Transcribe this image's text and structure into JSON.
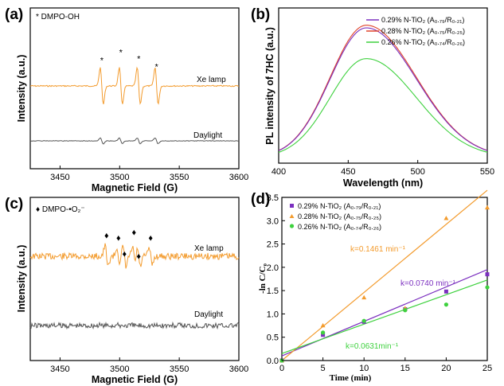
{
  "colors": {
    "orange": "#f39b2d",
    "grey": "#555555",
    "purple": "#7b2fbf",
    "red": "#e0442c",
    "green": "#3ed13e"
  },
  "panel_labels": [
    "(a)",
    "(b)",
    "(c)",
    "(d)"
  ],
  "chart_data": [
    {
      "id": "a",
      "type": "line",
      "title": "",
      "xlabel": "Magnetic Field (G)",
      "ylabel": "Intensity (a.u.)",
      "xlim": [
        3425,
        3600
      ],
      "xticks": [
        "3450",
        "3500",
        "3550",
        "3600"
      ],
      "legend_note": "* DMPO-OH",
      "series": [
        {
          "name": "Xe lamp",
          "color": "#f39b2d",
          "peaks": [
            3485,
            3501,
            3516,
            3531
          ],
          "peak_marker": "*"
        },
        {
          "name": "Daylight",
          "color": "#555555"
        }
      ]
    },
    {
      "id": "b",
      "type": "line",
      "xlabel": "Wavelength (nm)",
      "ylabel": "PL intensity of 7HC (a.u.)",
      "xlim": [
        400,
        550
      ],
      "xticks": [
        "400",
        "450",
        "500",
        "550"
      ],
      "peak_x": 463,
      "series": [
        {
          "name": "0.29% N-TiO₂ (A₀.₇₉/R₀.₂₁)",
          "color": "#7b2fbf",
          "relative_peak": 0.97
        },
        {
          "name": "0.28% N-TiO₂ (A₀.₇₅/R₀.₂₅)",
          "color": "#e0442c",
          "relative_peak": 0.99
        },
        {
          "name": "0.26% N-TiO₂ (A₀.₇₄/R₀.₂₆)",
          "color": "#3ed13e",
          "relative_peak": 0.74
        }
      ]
    },
    {
      "id": "c",
      "type": "line",
      "xlabel": "Magnetic Field (G)",
      "ylabel": "Intensity (a.u.)",
      "xlim": [
        3425,
        3600
      ],
      "xticks": [
        "3450",
        "3500",
        "3550",
        "3600"
      ],
      "legend_note": "♦ DMPO-•O₂⁻",
      "series": [
        {
          "name": "Xe lamp",
          "color": "#f39b2d",
          "peaks": [
            3489,
            3499,
            3504,
            3512,
            3516,
            3526
          ],
          "peak_marker": "♦"
        },
        {
          "name": "Daylight",
          "color": "#555555"
        }
      ]
    },
    {
      "id": "d",
      "type": "scatter",
      "xlabel": "Time (min)",
      "ylabel": "-ln C/C₀",
      "xlim": [
        0,
        25
      ],
      "ylim": [
        0,
        3.5
      ],
      "xticks": [
        "0",
        "5",
        "10",
        "15",
        "20",
        "25"
      ],
      "yticks": [
        "0.0",
        "0.5",
        "1.0",
        "1.5",
        "2.0",
        "2.5",
        "3.0",
        "3.5"
      ],
      "x": [
        0,
        5,
        10,
        15,
        20,
        25
      ],
      "series": [
        {
          "name": "0.29% N-TiO₂ (A₀.₇₉/R₀.₂₁)",
          "color": "#7b2fbf",
          "marker": "square",
          "values": [
            0,
            0.55,
            0.83,
            1.1,
            1.48,
            1.85
          ],
          "fit": [
            0.1,
            0.074
          ],
          "k_label": "k=0.0740 min⁻¹"
        },
        {
          "name": "0.28% N-TiO₂ (A₀.₇₅/R₀.₂₅)",
          "color": "#f39b2d",
          "marker": "triangle",
          "values": [
            0,
            0.75,
            1.35,
            1.12,
            3.05,
            3.28
          ],
          "fit": [
            0.0,
            0.1461
          ],
          "k_label": "k=0.1461 min⁻¹"
        },
        {
          "name": "0.26% N-TiO₂ (A₀.₇₄/R₀.₂₆)",
          "color": "#3ed13e",
          "marker": "circle",
          "values": [
            0,
            0.6,
            0.85,
            1.08,
            1.2,
            1.57
          ],
          "fit": [
            0.15,
            0.0631
          ],
          "k_label": "k=0.0631min⁻¹"
        }
      ]
    }
  ]
}
